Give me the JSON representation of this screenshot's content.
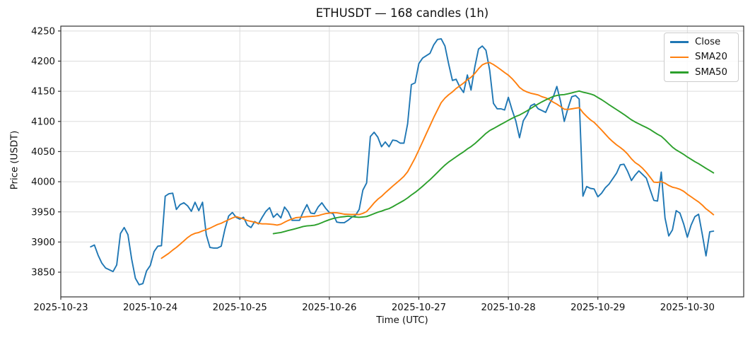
{
  "title": "ETHUSDT — 168 candles (1h)",
  "axes": {
    "xlabel": "Time (UTC)",
    "ylabel": "Price (USDT)",
    "x_tick_labels": [
      "2025-10-23",
      "2025-10-24",
      "2025-10-25",
      "2025-10-26",
      "2025-10-27",
      "2025-10-28",
      "2025-10-29",
      "2025-10-30"
    ],
    "y_tick_labels": [
      "3850",
      "3900",
      "3950",
      "4000",
      "4050",
      "4100",
      "4150",
      "4200",
      "4250"
    ]
  },
  "chart_data": {
    "type": "line",
    "title": "ETHUSDT — 168 candles (1h)",
    "xlabel": "Time (UTC)",
    "ylabel": "Price (USDT)",
    "symbol": "ETHUSDT",
    "interval": "1h",
    "candle_count": 168,
    "grid": true,
    "legend_position": "upper right",
    "ylim": [
      3809,
      4258
    ],
    "xlim_hours": [
      0,
      183.1
    ],
    "first_candle_hour": 8,
    "x_tick_hours": [
      0,
      24,
      48,
      72,
      96,
      120,
      144,
      168
    ],
    "y_ticks": [
      3850,
      3900,
      3950,
      4000,
      4050,
      4100,
      4150,
      4200,
      4250
    ],
    "series": [
      {
        "name": "Close",
        "color": "#1f77b4",
        "values": [
          3892,
          3895,
          3878,
          3865,
          3857,
          3854,
          3851,
          3862,
          3914,
          3924,
          3912,
          3872,
          3840,
          3829,
          3831,
          3852,
          3861,
          3884,
          3893,
          3894,
          3976,
          3980,
          3981,
          3954,
          3962,
          3965,
          3960,
          3951,
          3966,
          3952,
          3966,
          3912,
          3891,
          3890,
          3890,
          3893,
          3921,
          3943,
          3949,
          3941,
          3938,
          3941,
          3928,
          3924,
          3934,
          3930,
          3941,
          3951,
          3957,
          3941,
          3947,
          3940,
          3958,
          3950,
          3936,
          3936,
          3936,
          3950,
          3962,
          3948,
          3947,
          3958,
          3965,
          3956,
          3949,
          3947,
          3933,
          3932,
          3932,
          3936,
          3941,
          3944,
          3954,
          3986,
          3998,
          4075,
          4082,
          4074,
          4058,
          4066,
          4058,
          4069,
          4068,
          4064,
          4064,
          4096,
          4161,
          4164,
          4196,
          4205,
          4209,
          4213,
          4227,
          4236,
          4237,
          4225,
          4195,
          4168,
          4170,
          4157,
          4148,
          4177,
          4152,
          4190,
          4220,
          4225,
          4218,
          4185,
          4130,
          4121,
          4121,
          4119,
          4140,
          4119,
          4101,
          4073,
          4101,
          4111,
          4126,
          4129,
          4121,
          4118,
          4115,
          4129,
          4140,
          4158,
          4133,
          4100,
          4122,
          4141,
          4143,
          4137,
          3976,
          3992,
          3989,
          3988,
          3975,
          3981,
          3990,
          3996,
          4005,
          4014,
          4028,
          4029,
          4017,
          4002,
          4011,
          4018,
          4012,
          4006,
          3987,
          3969,
          3968,
          4016,
          3940,
          3910,
          3920,
          3952,
          3948,
          3930,
          3908,
          3928,
          3942,
          3946,
          3913,
          3877,
          3917,
          3918
        ]
      },
      {
        "name": "SMA20",
        "color": "#ff7f0e",
        "derived": "sma",
        "window": 20,
        "derived_from": "Close"
      },
      {
        "name": "SMA50",
        "color": "#2ca02c",
        "derived": "sma",
        "window": 50,
        "derived_from": "Close"
      }
    ]
  }
}
